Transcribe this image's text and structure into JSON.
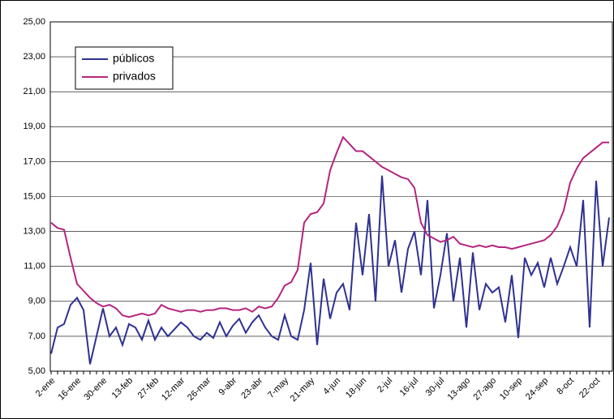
{
  "chart_data": {
    "type": "line",
    "categories": [
      "2-ene",
      null,
      null,
      null,
      "16-ene",
      null,
      null,
      null,
      "30-ene",
      null,
      null,
      null,
      "13-feb",
      null,
      null,
      null,
      "27-feb",
      null,
      null,
      null,
      "12-mar",
      null,
      null,
      null,
      "26-mar",
      null,
      null,
      null,
      "9-abr",
      null,
      null,
      null,
      "23-abr",
      null,
      null,
      null,
      "7-may",
      null,
      null,
      null,
      "21-may",
      null,
      null,
      null,
      "4-jun",
      null,
      null,
      null,
      "18-jun",
      null,
      null,
      null,
      "2-jul",
      null,
      null,
      null,
      "16-jul",
      null,
      null,
      null,
      "30-jul",
      null,
      null,
      null,
      "13-ago",
      null,
      null,
      null,
      "27-ago",
      null,
      null,
      null,
      "10-sep",
      null,
      null,
      null,
      "24-sep",
      null,
      null,
      null,
      "8-oct",
      null,
      null,
      null,
      "22-oct",
      null,
      null
    ],
    "series": [
      {
        "name": "públicos",
        "color": "#2e3192",
        "values": [
          6.0,
          7.5,
          7.7,
          8.8,
          9.2,
          8.5,
          5.4,
          7.0,
          8.6,
          7.0,
          7.5,
          6.5,
          7.7,
          7.5,
          6.8,
          7.9,
          6.8,
          7.5,
          7.0,
          7.4,
          7.8,
          7.5,
          7.0,
          6.8,
          7.2,
          6.9,
          7.8,
          7.0,
          7.6,
          8.0,
          7.2,
          7.8,
          8.2,
          7.5,
          7.0,
          6.8,
          8.2,
          7.0,
          6.8,
          8.5,
          11.2,
          6.5,
          10.3,
          8.0,
          9.5,
          10.0,
          8.5,
          13.5,
          10.5,
          14.0,
          9.0,
          16.2,
          11.0,
          12.5,
          9.5,
          12.0,
          13.0,
          10.5,
          14.8,
          8.6,
          10.5,
          12.9,
          9.0,
          11.5,
          7.5,
          11.8,
          8.5,
          10.0,
          9.5,
          9.8,
          7.8,
          10.5,
          6.9,
          11.5,
          10.5,
          11.2,
          9.8,
          11.5,
          10.0,
          11.0,
          12.1,
          11.0,
          14.8,
          7.5,
          15.9,
          11.0,
          13.8
        ]
      },
      {
        "name": "privados",
        "color": "#b5247f",
        "values": [
          13.5,
          13.2,
          13.1,
          11.5,
          10.0,
          9.6,
          9.2,
          8.9,
          8.7,
          8.8,
          8.6,
          8.2,
          8.1,
          8.2,
          8.3,
          8.2,
          8.3,
          8.8,
          8.6,
          8.5,
          8.4,
          8.5,
          8.5,
          8.4,
          8.5,
          8.5,
          8.6,
          8.6,
          8.5,
          8.5,
          8.6,
          8.4,
          8.7,
          8.6,
          8.7,
          9.2,
          9.9,
          10.1,
          10.8,
          13.5,
          14.0,
          14.1,
          14.6,
          16.5,
          17.5,
          18.4,
          18.0,
          17.6,
          17.6,
          17.3,
          17.0,
          16.7,
          16.5,
          16.3,
          16.1,
          16.0,
          15.5,
          13.5,
          12.8,
          12.6,
          12.4,
          12.5,
          12.7,
          12.3,
          12.2,
          12.1,
          12.2,
          12.1,
          12.2,
          12.1,
          12.1,
          12.0,
          12.1,
          12.2,
          12.3,
          12.4,
          12.5,
          12.8,
          13.3,
          14.2,
          15.8,
          16.6,
          17.2,
          17.5,
          17.8,
          18.1,
          18.1
        ]
      }
    ],
    "ylim": [
      5,
      25
    ],
    "yticks": [
      {
        "value": 5,
        "label": "5,00"
      },
      {
        "value": 7,
        "label": "7,00"
      },
      {
        "value": 9,
        "label": "9,00"
      },
      {
        "value": 11,
        "label": "11,00"
      },
      {
        "value": 13,
        "label": "13,00"
      },
      {
        "value": 15,
        "label": "15,00"
      },
      {
        "value": 17,
        "label": "17,00"
      },
      {
        "value": 19,
        "label": "19,00"
      },
      {
        "value": 21,
        "label": "21,00"
      },
      {
        "value": 23,
        "label": "23,00"
      },
      {
        "value": 25,
        "label": "25,00"
      }
    ],
    "grid": true,
    "legend": "upper left"
  }
}
